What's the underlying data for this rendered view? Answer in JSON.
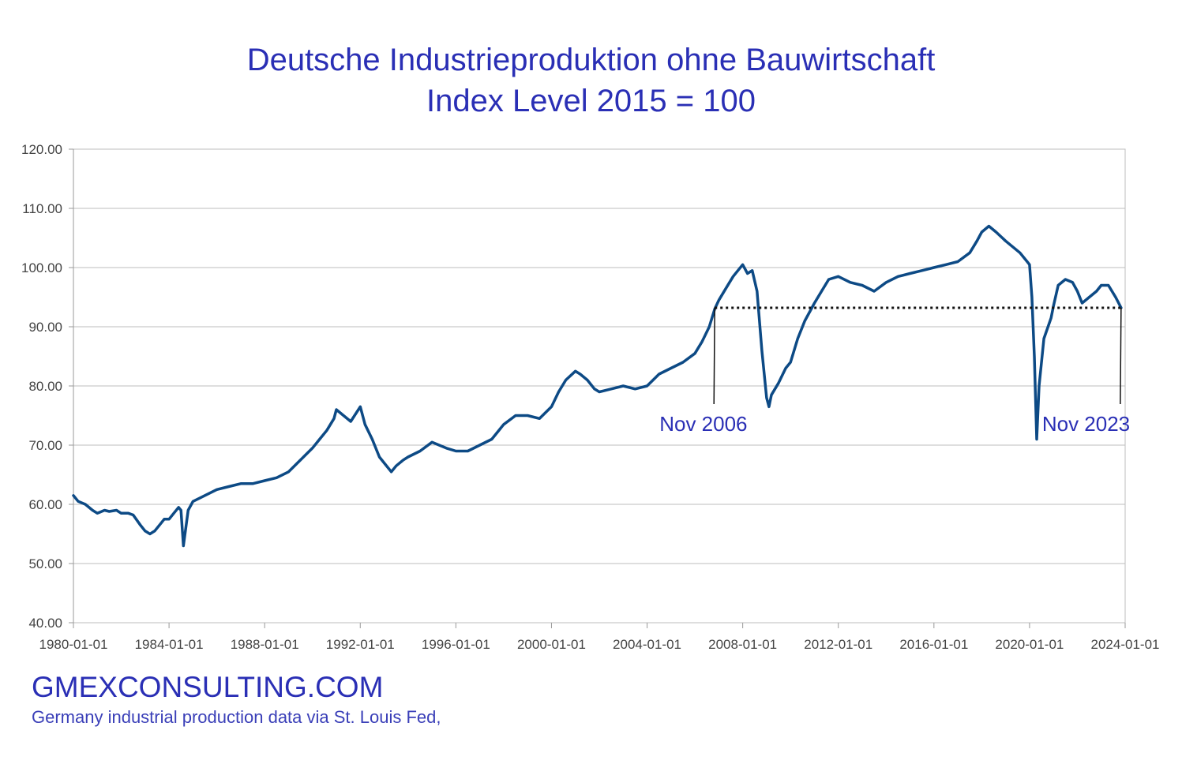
{
  "chart_data": {
    "type": "line",
    "title": "Deutsche Industrieproduktion ohne Bauwirtschaft",
    "subtitle": "Index Level 2015 = 100",
    "xlabel": "",
    "ylabel": "",
    "ylim": [
      40,
      120
    ],
    "xlim": [
      1980.0,
      2024.0
    ],
    "y_ticks": [
      "40.00",
      "50.00",
      "60.00",
      "70.00",
      "80.00",
      "90.00",
      "100.00",
      "110.00",
      "120.00"
    ],
    "x_ticks": [
      "1980-01-01",
      "1984-01-01",
      "1988-01-01",
      "1992-01-01",
      "1996-01-01",
      "2000-01-01",
      "2004-01-01",
      "2008-01-01",
      "2012-01-01",
      "2016-01-01",
      "2020-01-01",
      "2024-01-01"
    ],
    "grid": true,
    "legend": "none",
    "line_color": "#0d4a85",
    "series": [
      {
        "x": [
          1980.0,
          1980.2,
          1980.5,
          1980.8,
          1981.0,
          1981.3,
          1981.5,
          1981.8,
          1982.0,
          1982.3,
          1982.5,
          1982.8,
          1983.0,
          1983.2,
          1983.4,
          1983.6,
          1983.8,
          1984.0,
          1984.2,
          1984.4,
          1984.5,
          1984.6,
          1984.8,
          1985.0,
          1985.5,
          1986.0,
          1986.5,
          1987.0,
          1987.5,
          1988.0,
          1988.5,
          1989.0,
          1989.5,
          1990.0,
          1990.3,
          1990.6,
          1990.9,
          1991.0,
          1991.3,
          1991.6,
          1992.0,
          1992.2,
          1992.5,
          1992.8,
          1993.0,
          1993.3,
          1993.5,
          1993.8,
          1994.0,
          1994.5,
          1995.0,
          1995.3,
          1995.6,
          1996.0,
          1996.5,
          1997.0,
          1997.5,
          1998.0,
          1998.5,
          1999.0,
          1999.5,
          2000.0,
          2000.3,
          2000.6,
          2001.0,
          2001.2,
          2001.5,
          2001.8,
          2002.0,
          2002.5,
          2003.0,
          2003.5,
          2004.0,
          2004.5,
          2005.0,
          2005.5,
          2006.0,
          2006.3,
          2006.6,
          2006.83,
          2007.0,
          2007.3,
          2007.6,
          2008.0,
          2008.2,
          2008.4,
          2008.6,
          2008.8,
          2009.0,
          2009.1,
          2009.2,
          2009.5,
          2009.8,
          2010.0,
          2010.3,
          2010.6,
          2011.0,
          2011.3,
          2011.6,
          2012.0,
          2012.5,
          2013.0,
          2013.5,
          2014.0,
          2014.5,
          2015.0,
          2015.5,
          2016.0,
          2016.5,
          2017.0,
          2017.5,
          2017.8,
          2018.0,
          2018.3,
          2018.6,
          2019.0,
          2019.3,
          2019.6,
          2019.9,
          2020.0,
          2020.1,
          2020.2,
          2020.3,
          2020.4,
          2020.6,
          2020.9,
          2021.0,
          2021.2,
          2021.5,
          2021.8,
          2022.0,
          2022.2,
          2022.5,
          2022.8,
          2023.0,
          2023.3,
          2023.6,
          2023.83
        ],
        "y": [
          61.5,
          60.5,
          60,
          59,
          58.5,
          59,
          58.8,
          59,
          58.5,
          58.5,
          58.2,
          56.5,
          55.5,
          55.0,
          55.5,
          56.5,
          57.5,
          57.5,
          58.5,
          59.5,
          59.0,
          53.0,
          59.0,
          60.5,
          61.5,
          62.5,
          63.0,
          63.5,
          63.5,
          64.0,
          64.5,
          65.5,
          67.5,
          69.5,
          71.0,
          72.5,
          74.5,
          76.0,
          75.0,
          74.0,
          76.5,
          73.5,
          71.0,
          68.0,
          67.0,
          65.5,
          66.5,
          67.5,
          68.0,
          69.0,
          70.5,
          70.0,
          69.5,
          69.0,
          69.0,
          70.0,
          71.0,
          73.5,
          75.0,
          75.0,
          74.5,
          76.5,
          79.0,
          81.0,
          82.5,
          82.0,
          81.0,
          79.5,
          79.0,
          79.5,
          80.0,
          79.5,
          80.0,
          82.0,
          83.0,
          84.0,
          85.5,
          87.5,
          90.0,
          93.0,
          94.5,
          96.5,
          98.5,
          100.5,
          99.0,
          99.5,
          96.0,
          86.0,
          78.0,
          76.5,
          78.5,
          80.5,
          83.0,
          84.0,
          88.0,
          91.0,
          94.0,
          96.0,
          98.0,
          98.5,
          97.5,
          97.0,
          96.0,
          97.5,
          98.5,
          99.0,
          99.5,
          100.0,
          100.5,
          101.0,
          102.5,
          104.5,
          106.0,
          107.0,
          106.0,
          104.5,
          103.5,
          102.5,
          101.0,
          100.5,
          95.0,
          85.0,
          71.0,
          80.0,
          88.0,
          91.5,
          93.5,
          97.0,
          98.0,
          97.5,
          96.0,
          94.0,
          95.0,
          96.0,
          97.0,
          97.0,
          95.0,
          93.2
        ]
      }
    ],
    "reference_line": {
      "y": 93.2,
      "x_start": 2006.83,
      "x_end": 2023.83,
      "style": "dotted"
    },
    "annotations": [
      {
        "label": "Nov 2006",
        "x": 2006.83,
        "y": 93.2
      },
      {
        "label": "Nov 2023",
        "x": 2023.83,
        "y": 93.2
      }
    ]
  },
  "footer": {
    "brand": "GMEXCONSULTING.COM",
    "source": "Germany industrial production data via St. Louis Fed,"
  }
}
